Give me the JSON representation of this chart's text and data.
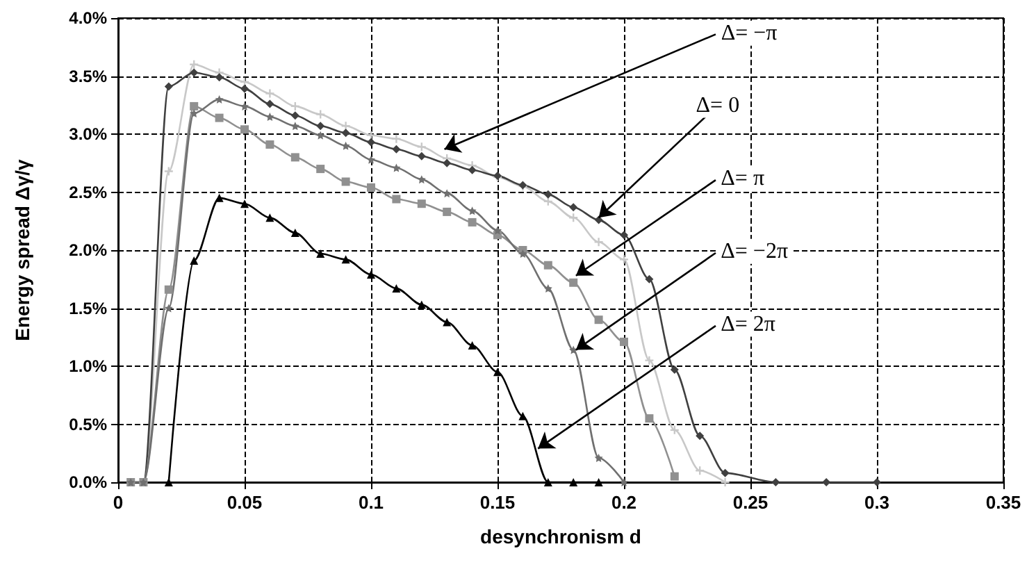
{
  "chart_data": {
    "type": "line",
    "xlabel": "desynchronism d",
    "ylabel": "Energy spread Δγ/γ",
    "xlim": [
      0,
      0.35
    ],
    "xticks": [
      0,
      0.05,
      0.1,
      0.15,
      0.2,
      0.25,
      0.3,
      0.35
    ],
    "ylim": [
      0,
      4
    ],
    "yticks": [
      {
        "value": 0,
        "label": "0.0%"
      },
      {
        "value": 0.5,
        "label": "0.5%"
      },
      {
        "value": 1,
        "label": "1.0%"
      },
      {
        "value": 1.5,
        "label": "1.5%"
      },
      {
        "value": 2,
        "label": "2.0%"
      },
      {
        "value": 2.5,
        "label": "2.5%"
      },
      {
        "value": 3,
        "label": "3.0%"
      },
      {
        "value": 3.5,
        "label": "3.5%"
      },
      {
        "value": 4,
        "label": "4.0%"
      }
    ],
    "grid": true,
    "line_style": "solid",
    "series": [
      {
        "color": "#c8c8c8",
        "marker": "cross",
        "x": [
          0.005,
          0.01,
          0.02,
          0.03,
          0.04,
          0.05,
          0.06,
          0.07,
          0.08,
          0.09,
          0.1,
          0.11,
          0.12,
          0.13,
          0.14,
          0.15,
          0.16,
          0.17,
          0.18,
          0.19,
          0.2,
          0.21,
          0.22,
          0.23,
          0.24
        ],
        "values": [
          0,
          0,
          2.68,
          3.6,
          3.53,
          3.45,
          3.35,
          3.24,
          3.17,
          3.07,
          2.99,
          2.96,
          2.89,
          2.79,
          2.73,
          2.63,
          2.55,
          2.42,
          2.28,
          2.07,
          1.92,
          1.05,
          0.45,
          0.1,
          0
        ]
      },
      {
        "color": "#404040",
        "marker": "diamond",
        "x": [
          0.005,
          0.01,
          0.02,
          0.03,
          0.04,
          0.05,
          0.06,
          0.07,
          0.08,
          0.09,
          0.1,
          0.11,
          0.12,
          0.13,
          0.14,
          0.15,
          0.16,
          0.17,
          0.18,
          0.19,
          0.2,
          0.21,
          0.22,
          0.23,
          0.24,
          0.26,
          0.28,
          0.3
        ],
        "values": [
          0,
          0,
          3.41,
          3.53,
          3.49,
          3.39,
          3.26,
          3.16,
          3.07,
          3.01,
          2.93,
          2.87,
          2.81,
          2.75,
          2.69,
          2.64,
          2.56,
          2.48,
          2.37,
          2.26,
          2.13,
          1.75,
          0.97,
          0.4,
          0.08,
          0,
          0,
          0
        ]
      },
      {
        "color": "#909090",
        "marker": "square",
        "x": [
          0.005,
          0.01,
          0.02,
          0.03,
          0.04,
          0.05,
          0.06,
          0.07,
          0.08,
          0.09,
          0.1,
          0.11,
          0.12,
          0.13,
          0.14,
          0.15,
          0.16,
          0.17,
          0.18,
          0.19,
          0.2,
          0.21,
          0.22
        ],
        "values": [
          0,
          0,
          1.66,
          3.24,
          3.14,
          3.04,
          2.91,
          2.8,
          2.7,
          2.59,
          2.54,
          2.44,
          2.4,
          2.33,
          2.24,
          2.13,
          2.0,
          1.87,
          1.72,
          1.4,
          1.21,
          0.55,
          0.05
        ]
      },
      {
        "color": "#707070",
        "marker": "star",
        "x": [
          0.005,
          0.01,
          0.02,
          0.03,
          0.04,
          0.05,
          0.06,
          0.07,
          0.08,
          0.09,
          0.1,
          0.11,
          0.12,
          0.13,
          0.14,
          0.15,
          0.16,
          0.17,
          0.18,
          0.19,
          0.2
        ],
        "values": [
          0,
          0,
          1.5,
          3.18,
          3.3,
          3.24,
          3.15,
          3.07,
          2.99,
          2.9,
          2.78,
          2.71,
          2.61,
          2.49,
          2.34,
          2.17,
          1.97,
          1.67,
          1.14,
          0.21,
          0
        ]
      },
      {
        "color": "#000000",
        "marker": "triangle",
        "x": [
          0.02,
          0.03,
          0.04,
          0.05,
          0.06,
          0.07,
          0.08,
          0.09,
          0.1,
          0.11,
          0.12,
          0.13,
          0.14,
          0.15,
          0.16,
          0.17,
          0.18,
          0.19
        ],
        "values": [
          0,
          1.91,
          2.45,
          2.4,
          2.28,
          2.15,
          1.97,
          1.92,
          1.79,
          1.67,
          1.53,
          1.38,
          1.18,
          0.95,
          0.57,
          0,
          0,
          0
        ]
      }
    ],
    "annotations": [
      {
        "text": "Δ= −π",
        "x": 0.129,
        "y": 2.87
      },
      {
        "text": "Δ= 0",
        "x": 0.19,
        "y": 2.28
      },
      {
        "text": "Δ= π",
        "x": 0.181,
        "y": 1.78
      },
      {
        "text": "Δ= −2π",
        "x": 0.181,
        "y": 1.14
      },
      {
        "text": "Δ= 2π",
        "x": 0.166,
        "y": 0.29
      }
    ]
  }
}
